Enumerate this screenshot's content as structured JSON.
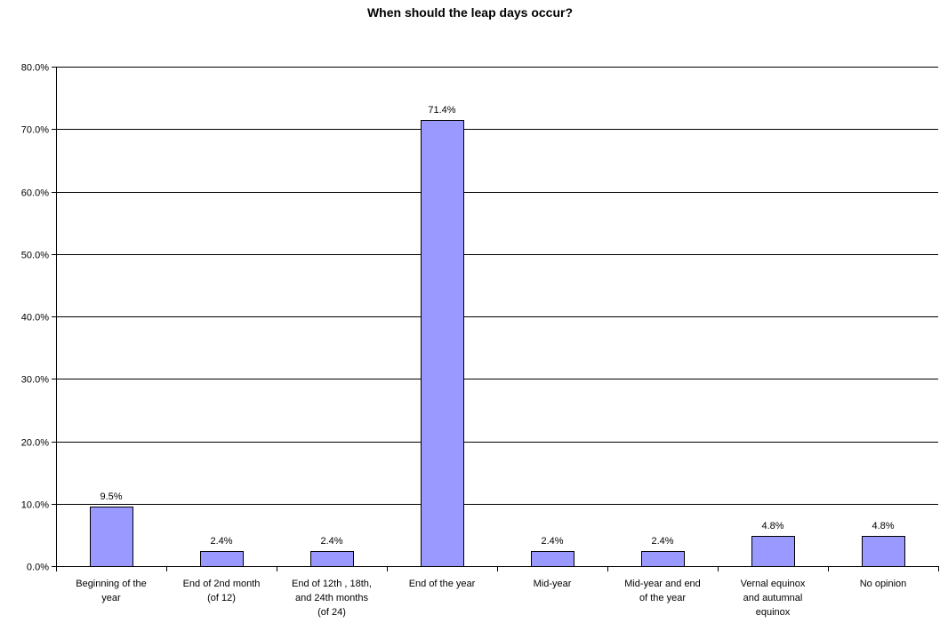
{
  "chart_data": {
    "type": "bar",
    "title": "When should the leap days occur?",
    "xlabel": "",
    "ylabel": "",
    "categories": [
      "Beginning of the year",
      "End of 2nd month (of 12)",
      "End of 12th , 18th, and 24th months (of 24)",
      "End of the year",
      "Mid-year",
      "Mid-year and end of the year",
      "Vernal equinox and autumnal equinox",
      "No opinion"
    ],
    "category_label_lines": [
      [
        "Beginning of the",
        "year"
      ],
      [
        "End of 2nd month",
        "(of 12)"
      ],
      [
        "End of 12th , 18th,",
        "and 24th months",
        "(of 24)"
      ],
      [
        "End of the year"
      ],
      [
        "Mid-year"
      ],
      [
        "Mid-year and end",
        "of the year"
      ],
      [
        "Vernal equinox",
        "and autumnal",
        "equinox"
      ],
      [
        "No opinion"
      ]
    ],
    "values": [
      9.5,
      2.4,
      2.4,
      71.4,
      2.4,
      2.4,
      4.8,
      4.8
    ],
    "data_labels": [
      "9.5%",
      "2.4%",
      "2.4%",
      "71.4%",
      "2.4%",
      "2.4%",
      "4.8%",
      "4.8%"
    ],
    "ylim": [
      0,
      80
    ],
    "yticks": [
      0,
      10,
      20,
      30,
      40,
      50,
      60,
      70,
      80
    ],
    "ytick_labels": [
      "0.0%",
      "10.0%",
      "20.0%",
      "30.0%",
      "40.0%",
      "50.0%",
      "60.0%",
      "70.0%",
      "80.0%"
    ],
    "grid": true,
    "legend": "none",
    "colors": {
      "bar_fill": "#9999ff",
      "bar_stroke": "#000000",
      "gridline": "#000000",
      "axis": "#000000",
      "background": "#ffffff"
    }
  }
}
